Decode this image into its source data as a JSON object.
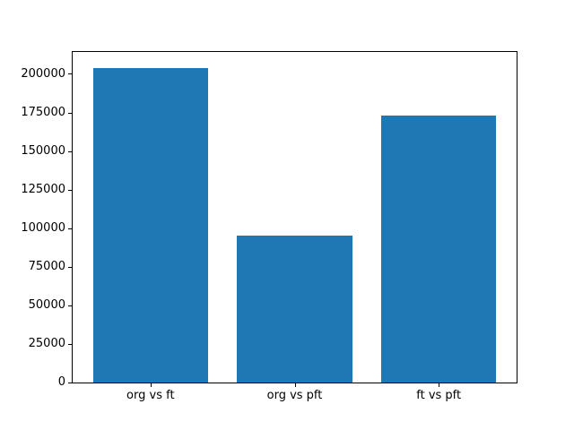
{
  "figure": {
    "background_color": "#ffffff",
    "frame_color": "#000000",
    "tick_color": "#000000"
  },
  "chart_data": {
    "type": "bar",
    "categories": [
      "org vs ft",
      "org vs pft",
      "ft vs pft"
    ],
    "values": [
      204000,
      95000,
      173000
    ],
    "title": "",
    "xlabel": "",
    "ylabel": "",
    "yticks": [
      0,
      25000,
      50000,
      75000,
      100000,
      125000,
      150000,
      175000,
      200000
    ],
    "ylim": [
      0,
      214200
    ],
    "xlim": [
      -0.54,
      2.54
    ],
    "bar_width_fraction": 0.8,
    "bar_color": "#1f77b4",
    "grid": false,
    "legend": "none"
  }
}
